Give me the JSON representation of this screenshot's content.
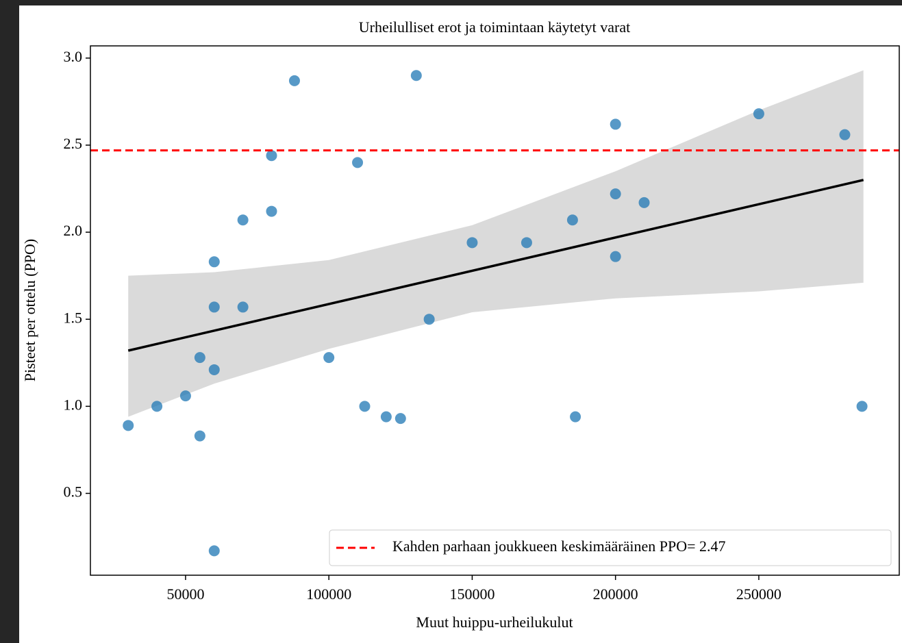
{
  "chart_data": {
    "type": "scatter",
    "title": "Urheilulliset erot ja toimintaan käytetyt varat",
    "x_label": "Muut huippu-urheilukulut",
    "y_label": "Pisteet per ottelu (PPO)",
    "x": [
      30000,
      40000,
      50000,
      55000,
      55000,
      60000,
      60000,
      60000,
      60000,
      70000,
      70000,
      80000,
      80000,
      88000,
      100000,
      110000,
      112500,
      120000,
      125000,
      130500,
      135000,
      150000,
      169000,
      185000,
      186000,
      200000,
      200000,
      200000,
      210000,
      250000,
      280000,
      286000
    ],
    "y": [
      0.89,
      1.0,
      1.06,
      1.28,
      0.83,
      1.83,
      1.57,
      1.21,
      0.17,
      2.07,
      1.57,
      2.44,
      2.12,
      2.87,
      1.28,
      2.4,
      1.0,
      0.94,
      0.93,
      2.9,
      1.5,
      1.94,
      1.94,
      2.07,
      0.94,
      2.62,
      2.22,
      1.86,
      2.17,
      2.68,
      2.56,
      1.0
    ],
    "color": "#1f77b4",
    "regression": {
      "x": [
        30000,
        286500
      ],
      "y": [
        1.32,
        2.3
      ],
      "color": "#000000"
    },
    "band": {
      "x": [
        30000,
        60000,
        100000,
        150000,
        200000,
        250000,
        286500
      ],
      "upper": [
        1.75,
        1.77,
        1.84,
        2.04,
        2.35,
        2.7,
        2.93
      ],
      "lower": [
        0.94,
        1.13,
        1.33,
        1.54,
        1.62,
        1.66,
        1.71
      ],
      "color": "#d3d3d3"
    },
    "hline": {
      "value": 2.47,
      "color": "#ff0000",
      "label": "Kahden parhaan joukkueen keskimääräinen PPO= 2.47"
    },
    "xlim": [
      16800,
      299000
    ],
    "ylim": [
      0.03,
      3.07
    ],
    "xticks": [
      50000,
      100000,
      150000,
      200000,
      250000
    ],
    "yticks": [
      0.5,
      {
        "value": 1,
        "label": "1.0"
      },
      1.5,
      {
        "value": 2,
        "label": "2.0"
      },
      2.5,
      {
        "value": 3,
        "label": "3.0"
      }
    ],
    "grid": false,
    "legend": "lower right"
  }
}
